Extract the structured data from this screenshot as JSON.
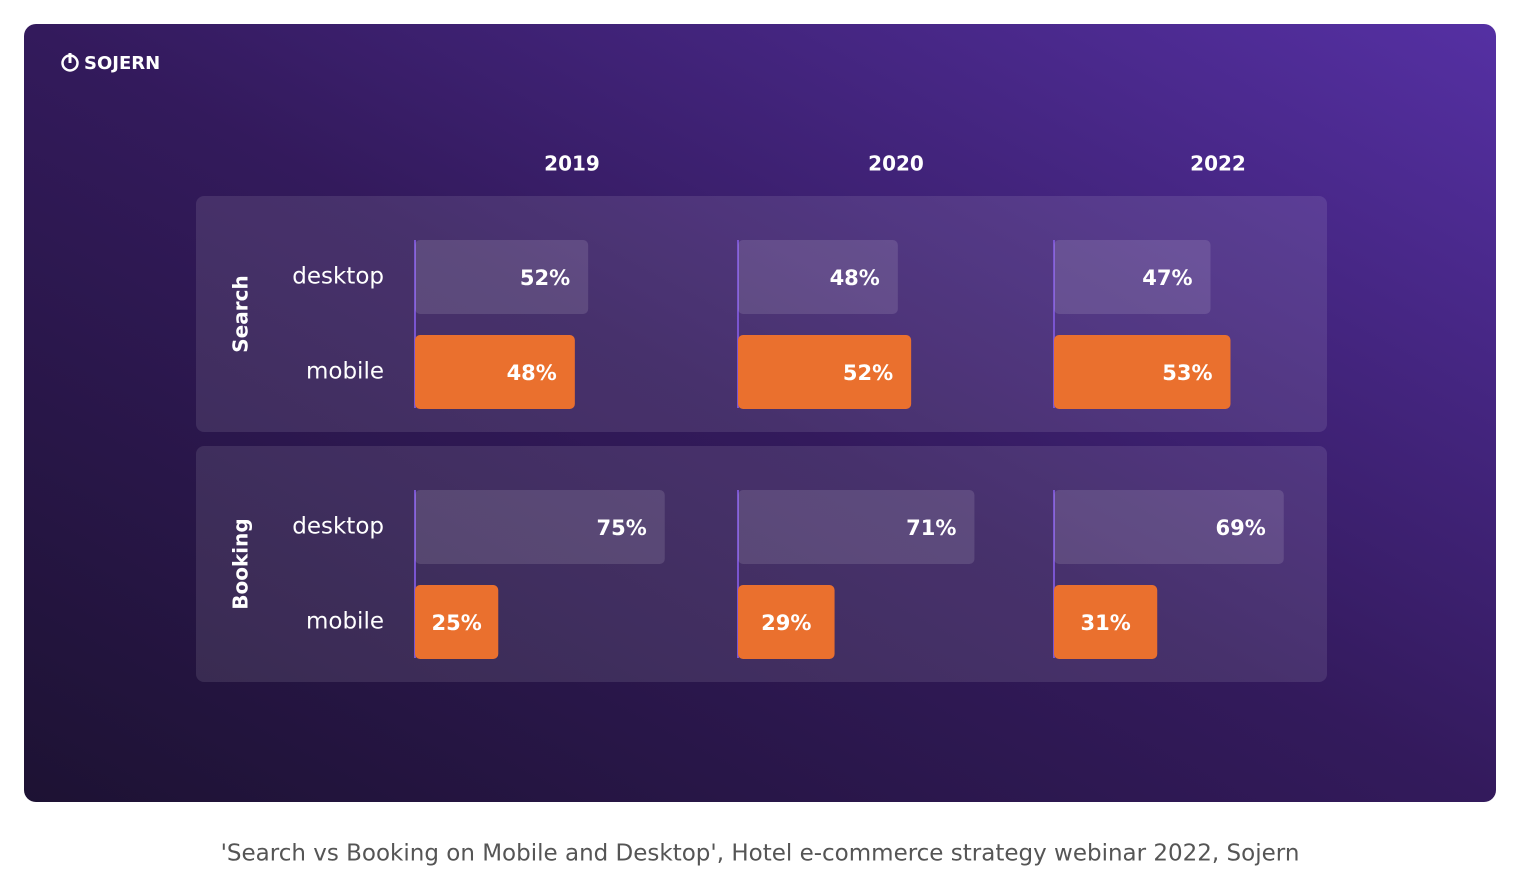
{
  "chart_data": {
    "type": "bar",
    "brand": "SOJERN",
    "caption": "'Search vs Booking on Mobile and Desktop', Hotel e-commerce strategy webinar 2022, Sojern",
    "years": [
      "2019",
      "2020",
      "2022"
    ],
    "panels": [
      {
        "name": "Search",
        "series": [
          {
            "name": "desktop",
            "color": "#ffffff",
            "values": [
              52,
              48,
              47
            ],
            "value_labels": [
              "52%",
              "48%",
              "47%"
            ]
          },
          {
            "name": "mobile",
            "color": "#ea702e",
            "values": [
              48,
              52,
              53
            ],
            "value_labels": [
              "48%",
              "52%",
              "53%"
            ]
          }
        ]
      },
      {
        "name": "Booking",
        "series": [
          {
            "name": "desktop",
            "color": "#ffffff",
            "values": [
              75,
              71,
              69
            ],
            "value_labels": [
              "75%",
              "71%",
              "69%"
            ]
          },
          {
            "name": "mobile",
            "color": "#ea702e",
            "values": [
              25,
              29,
              31
            ],
            "value_labels": [
              "25%",
              "29%",
              "31%"
            ]
          }
        ]
      }
    ]
  }
}
